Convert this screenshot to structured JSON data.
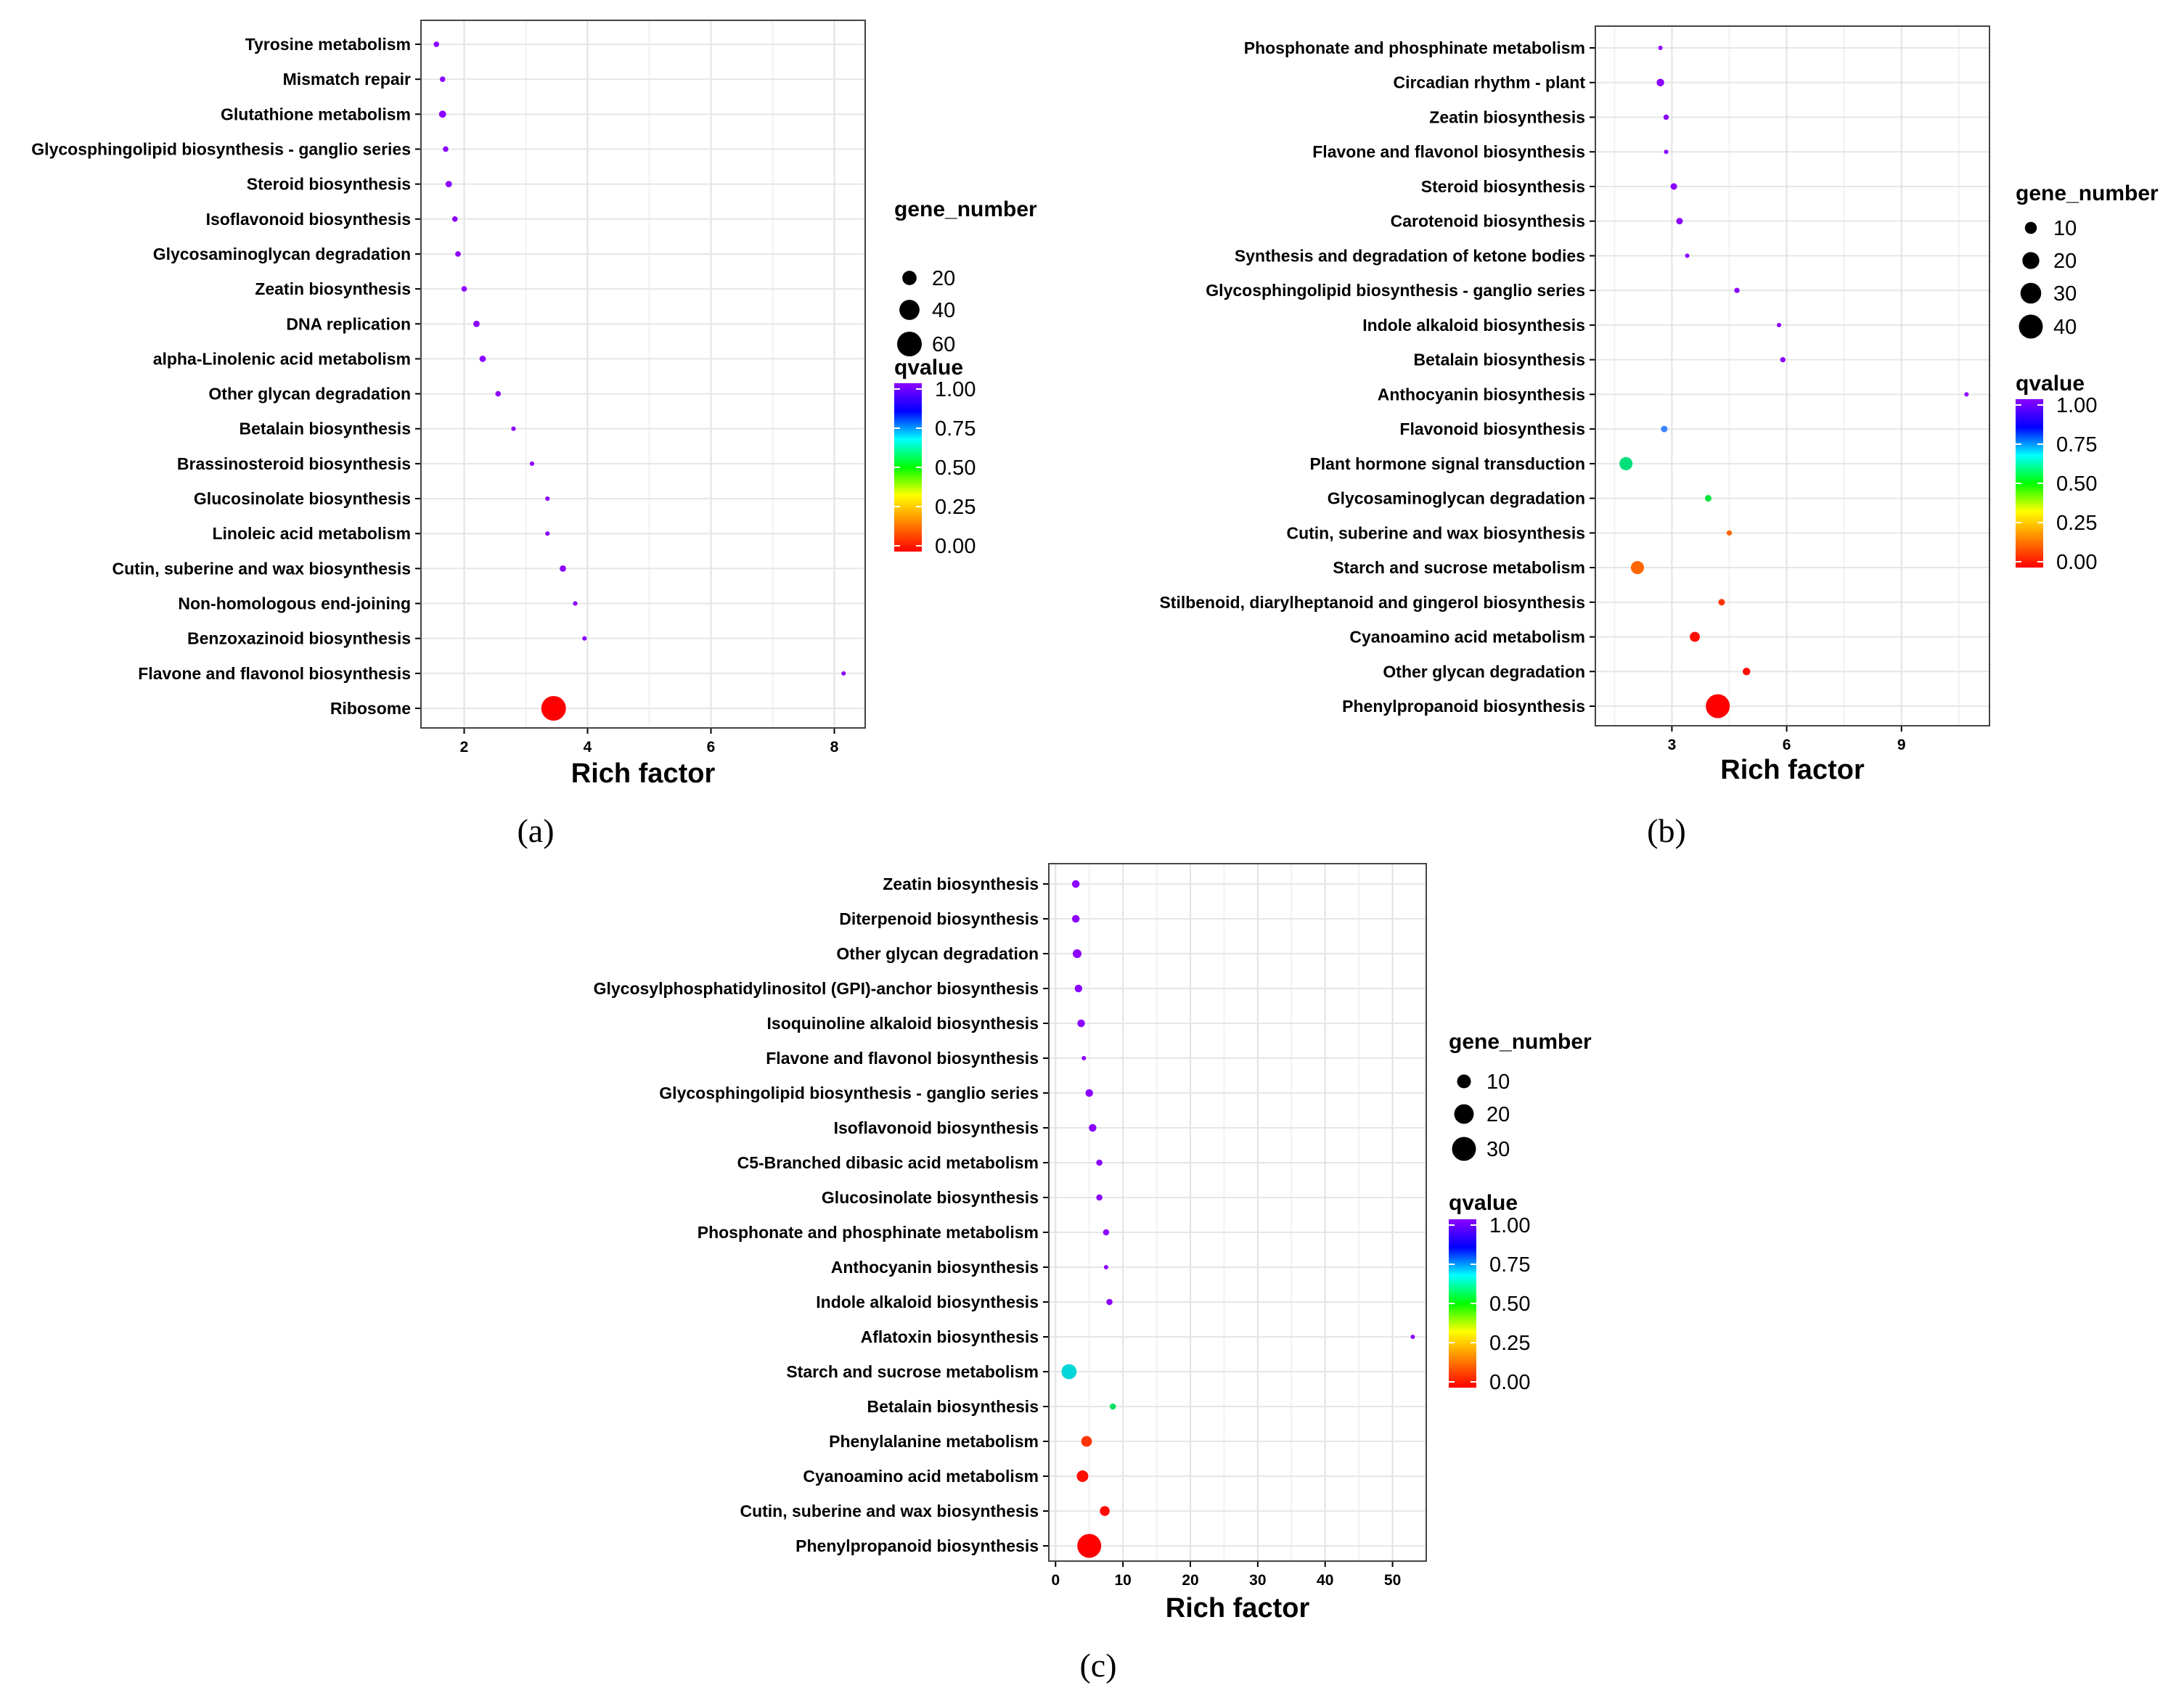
{
  "chart_data": [
    {
      "panel": "(a)",
      "type": "scatter",
      "xlabel": "Rich factor",
      "xlim": [
        1.3,
        8.5
      ],
      "xticks": [
        2,
        4,
        6,
        8
      ],
      "size_legend": {
        "title": "gene_number",
        "values": [
          20,
          40,
          60
        ]
      },
      "color_legend": {
        "title": "qvalue",
        "labels": [
          "1.00",
          "0.75",
          "0.50",
          "0.25",
          "0.00"
        ],
        "colors": [
          "#8B00FF",
          "#0000FF",
          "#00FFFF",
          "#00FF00",
          "#FFFF00",
          "#FF8000",
          "#FF0000"
        ]
      },
      "points": [
        {
          "pathway": "Tyrosine metabolism",
          "rich_factor": 1.55,
          "gene_number": 3,
          "qvalue": 1.0
        },
        {
          "pathway": "Mismatch repair",
          "rich_factor": 1.65,
          "gene_number": 3,
          "qvalue": 1.0
        },
        {
          "pathway": "Glutathione metabolism",
          "rich_factor": 1.65,
          "gene_number": 5,
          "qvalue": 1.0
        },
        {
          "pathway": "Glycosphingolipid biosynthesis - ganglio series",
          "rich_factor": 1.7,
          "gene_number": 3,
          "qvalue": 1.0
        },
        {
          "pathway": "Steroid biosynthesis",
          "rich_factor": 1.75,
          "gene_number": 4,
          "qvalue": 1.0
        },
        {
          "pathway": "Isoflavonoid biosynthesis",
          "rich_factor": 1.85,
          "gene_number": 3,
          "qvalue": 1.0
        },
        {
          "pathway": "Glycosaminoglycan degradation",
          "rich_factor": 1.9,
          "gene_number": 3,
          "qvalue": 1.0
        },
        {
          "pathway": "Zeatin biosynthesis",
          "rich_factor": 2.0,
          "gene_number": 3,
          "qvalue": 1.0
        },
        {
          "pathway": "DNA replication",
          "rich_factor": 2.2,
          "gene_number": 4,
          "qvalue": 1.0
        },
        {
          "pathway": "alpha-Linolenic acid metabolism",
          "rich_factor": 2.3,
          "gene_number": 4,
          "qvalue": 1.0
        },
        {
          "pathway": "Other glycan degradation",
          "rich_factor": 2.55,
          "gene_number": 3,
          "qvalue": 1.0
        },
        {
          "pathway": "Betalain biosynthesis",
          "rich_factor": 2.8,
          "gene_number": 2,
          "qvalue": 1.0
        },
        {
          "pathway": "Brassinosteroid biosynthesis",
          "rich_factor": 3.1,
          "gene_number": 2,
          "qvalue": 1.0
        },
        {
          "pathway": "Glucosinolate biosynthesis",
          "rich_factor": 3.35,
          "gene_number": 2,
          "qvalue": 1.0
        },
        {
          "pathway": "Linoleic acid metabolism",
          "rich_factor": 3.35,
          "gene_number": 2,
          "qvalue": 1.0
        },
        {
          "pathway": "Cutin, suberine and wax biosynthesis",
          "rich_factor": 3.6,
          "gene_number": 4,
          "qvalue": 1.0
        },
        {
          "pathway": "Non-homologous end-joining",
          "rich_factor": 3.8,
          "gene_number": 2,
          "qvalue": 1.0
        },
        {
          "pathway": "Benzoxazinoid biosynthesis",
          "rich_factor": 3.95,
          "gene_number": 2,
          "qvalue": 1.0
        },
        {
          "pathway": "Flavone and flavonol biosynthesis",
          "rich_factor": 8.15,
          "gene_number": 1,
          "qvalue": 1.0
        },
        {
          "pathway": "Ribosome",
          "rich_factor": 3.45,
          "gene_number": 60,
          "qvalue": 0.0
        }
      ]
    },
    {
      "panel": "(b)",
      "type": "scatter",
      "xlabel": "Rich factor",
      "xlim": [
        1.0,
        11.3
      ],
      "xticks": [
        3,
        6,
        9
      ],
      "size_legend": {
        "title": "gene_number",
        "values": [
          10,
          20,
          30,
          40
        ]
      },
      "color_legend": {
        "title": "qvalue",
        "labels": [
          "1.00",
          "0.75",
          "0.50",
          "0.25",
          "0.00"
        ],
        "colors": [
          "#8B00FF",
          "#0000FF",
          "#00FFFF",
          "#00FF00",
          "#FFFF00",
          "#FF8000",
          "#FF0000"
        ]
      },
      "points": [
        {
          "pathway": "Phosphonate and phosphinate metabolism",
          "rich_factor": 2.7,
          "gene_number": 1,
          "qvalue": 1.0
        },
        {
          "pathway": "Circadian rhythm - plant",
          "rich_factor": 2.7,
          "gene_number": 4,
          "qvalue": 1.0
        },
        {
          "pathway": "Zeatin biosynthesis",
          "rich_factor": 2.85,
          "gene_number": 2,
          "qvalue": 1.0
        },
        {
          "pathway": "Flavone and flavonol biosynthesis",
          "rich_factor": 2.85,
          "gene_number": 1,
          "qvalue": 1.0
        },
        {
          "pathway": "Steroid biosynthesis",
          "rich_factor": 3.05,
          "gene_number": 3,
          "qvalue": 1.0
        },
        {
          "pathway": "Carotenoid biosynthesis",
          "rich_factor": 3.2,
          "gene_number": 3,
          "qvalue": 1.0
        },
        {
          "pathway": "Synthesis and degradation of ketone bodies",
          "rich_factor": 3.4,
          "gene_number": 1,
          "qvalue": 1.0
        },
        {
          "pathway": "Glycosphingolipid biosynthesis - ganglio series",
          "rich_factor": 4.7,
          "gene_number": 2,
          "qvalue": 1.0
        },
        {
          "pathway": "Indole alkaloid biosynthesis",
          "rich_factor": 5.8,
          "gene_number": 1,
          "qvalue": 1.0
        },
        {
          "pathway": "Betalain biosynthesis",
          "rich_factor": 5.9,
          "gene_number": 2,
          "qvalue": 1.0
        },
        {
          "pathway": "Anthocyanin biosynthesis",
          "rich_factor": 10.7,
          "gene_number": 1,
          "qvalue": 1.0
        },
        {
          "pathway": "Flavonoid biosynthesis",
          "rich_factor": 2.8,
          "gene_number": 3,
          "qvalue": 0.85
        },
        {
          "pathway": "Plant hormone signal transduction",
          "rich_factor": 1.8,
          "gene_number": 12,
          "qvalue": 0.58
        },
        {
          "pathway": "Glycosaminoglycan degradation",
          "rich_factor": 3.95,
          "gene_number": 3,
          "qvalue": 0.5
        },
        {
          "pathway": "Cutin, suberine and wax biosynthesis",
          "rich_factor": 4.5,
          "gene_number": 2,
          "qvalue": 0.2
        },
        {
          "pathway": "Starch and sucrose metabolism",
          "rich_factor": 2.1,
          "gene_number": 12,
          "qvalue": 0.2
        },
        {
          "pathway": "Stilbenoid, diarylheptanoid and gingerol biosynthesis",
          "rich_factor": 4.3,
          "gene_number": 3,
          "qvalue": 0.1
        },
        {
          "pathway": "Cyanoamino acid metabolism",
          "rich_factor": 3.6,
          "gene_number": 7,
          "qvalue": 0.03
        },
        {
          "pathway": "Other glycan degradation",
          "rich_factor": 4.95,
          "gene_number": 4,
          "qvalue": 0.02
        },
        {
          "pathway": "Phenylpropanoid biosynthesis",
          "rich_factor": 4.2,
          "gene_number": 40,
          "qvalue": 0.0
        }
      ]
    },
    {
      "panel": "(c)",
      "type": "scatter",
      "xlabel": "Rich factor",
      "xlim": [
        -1.0,
        55.0
      ],
      "xticks": [
        0,
        10,
        20,
        30,
        40,
        50
      ],
      "size_legend": {
        "title": "gene_number",
        "values": [
          10,
          20,
          30
        ]
      },
      "color_legend": {
        "title": "qvalue",
        "labels": [
          "1.00",
          "0.75",
          "0.50",
          "0.25",
          "0.00"
        ],
        "colors": [
          "#8B00FF",
          "#0000FF",
          "#00FFFF",
          "#00FF00",
          "#FFFF00",
          "#FF8000",
          "#FF0000"
        ]
      },
      "points": [
        {
          "pathway": "Zeatin biosynthesis",
          "rich_factor": 3.0,
          "gene_number": 3,
          "qvalue": 1.0
        },
        {
          "pathway": "Diterpenoid biosynthesis",
          "rich_factor": 3.0,
          "gene_number": 3,
          "qvalue": 1.0
        },
        {
          "pathway": "Other glycan degradation",
          "rich_factor": 3.2,
          "gene_number": 4,
          "qvalue": 1.0
        },
        {
          "pathway": "Glycosylphosphatidylinositol (GPI)-anchor biosynthesis",
          "rich_factor": 3.4,
          "gene_number": 3,
          "qvalue": 1.0
        },
        {
          "pathway": "Isoquinoline alkaloid biosynthesis",
          "rich_factor": 3.8,
          "gene_number": 3,
          "qvalue": 1.0
        },
        {
          "pathway": "Flavone and flavonol biosynthesis",
          "rich_factor": 4.2,
          "gene_number": 1,
          "qvalue": 1.0
        },
        {
          "pathway": "Glycosphingolipid biosynthesis - ganglio series",
          "rich_factor": 5.0,
          "gene_number": 3,
          "qvalue": 1.0
        },
        {
          "pathway": "Isoflavonoid biosynthesis",
          "rich_factor": 5.5,
          "gene_number": 3,
          "qvalue": 1.0
        },
        {
          "pathway": "C5-Branched dibasic acid metabolism",
          "rich_factor": 6.5,
          "gene_number": 2,
          "qvalue": 1.0
        },
        {
          "pathway": "Glucosinolate biosynthesis",
          "rich_factor": 6.5,
          "gene_number": 2,
          "qvalue": 1.0
        },
        {
          "pathway": "Phosphonate and phosphinate metabolism",
          "rich_factor": 7.5,
          "gene_number": 2,
          "qvalue": 1.0
        },
        {
          "pathway": "Anthocyanin biosynthesis",
          "rich_factor": 7.5,
          "gene_number": 1,
          "qvalue": 1.0
        },
        {
          "pathway": "Indole alkaloid biosynthesis",
          "rich_factor": 8.0,
          "gene_number": 2,
          "qvalue": 1.0
        },
        {
          "pathway": "Aflatoxin biosynthesis",
          "rich_factor": 53.0,
          "gene_number": 1,
          "qvalue": 1.0
        },
        {
          "pathway": "Starch and sucrose metabolism",
          "rich_factor": 2.0,
          "gene_number": 12,
          "qvalue": 0.7
        },
        {
          "pathway": "Betalain biosynthesis",
          "rich_factor": 8.5,
          "gene_number": 2,
          "qvalue": 0.55
        },
        {
          "pathway": "Phenylalanine metabolism",
          "rich_factor": 4.6,
          "gene_number": 6,
          "qvalue": 0.1
        },
        {
          "pathway": "Cyanoamino acid metabolism",
          "rich_factor": 4.0,
          "gene_number": 7,
          "qvalue": 0.03
        },
        {
          "pathway": "Cutin, suberine and wax biosynthesis",
          "rich_factor": 7.3,
          "gene_number": 5,
          "qvalue": 0.02
        },
        {
          "pathway": "Phenylpropanoid biosynthesis",
          "rich_factor": 5.0,
          "gene_number": 30,
          "qvalue": 0.0
        }
      ]
    }
  ]
}
